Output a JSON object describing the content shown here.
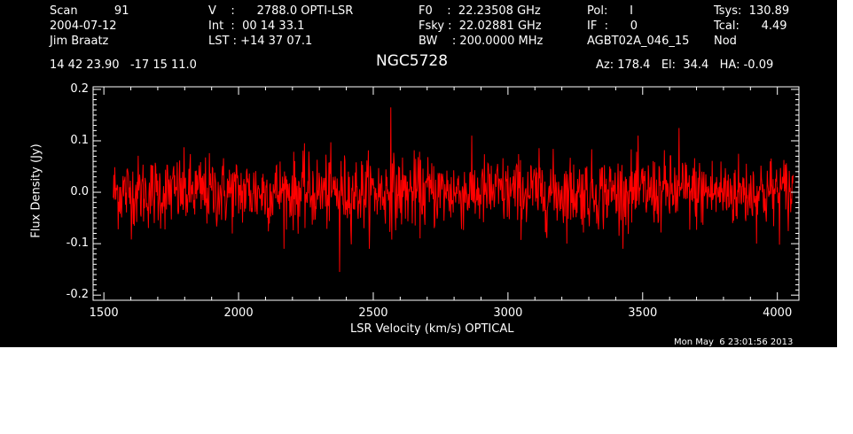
{
  "header": {
    "col1": [
      "Scan          91",
      "2004-07-12",
      "Jim Braatz"
    ],
    "col2": [
      "V    :      2788.0 OPTI-LSR",
      "Int  :  00 14 33.1",
      "LST : +14 37 07.1"
    ],
    "col3": [
      "F0    :  22.23508 GHz",
      "Fsky :  22.02881 GHz",
      "BW    : 200.0000 MHz"
    ],
    "col4": [
      "Pol:      I",
      "IF  :      0",
      "AGBT02A_046_15"
    ],
    "col5": [
      "Tsys:  130.89",
      "Tcal:      4.49",
      "Nod"
    ],
    "coords": "14 42 23.90   -17 15 11.0",
    "azel": "Az: 178.4   El:  34.4   HA: -0.09",
    "timestamp": "Mon May  6 23:01:56 2013"
  },
  "chart_data": {
    "type": "line",
    "title": "NGC5728",
    "xlabel": "LSR Velocity (km/s) OPTICAL",
    "ylabel": "Flux Density (Jy)",
    "xlim": [
      1460,
      4080
    ],
    "ylim": [
      -0.21,
      0.205
    ],
    "x_ticks": [
      1500,
      2000,
      2500,
      3000,
      3500,
      4000
    ],
    "y_ticks": [
      -0.2,
      -0.1,
      0.0,
      0.1,
      0.2
    ],
    "y_tick_labels": [
      "-0.2",
      "-0.1",
      "0.0",
      "0.1",
      "0.2"
    ],
    "series_color": "#ff0000",
    "series": [
      {
        "x_range": [
          1535,
          4060
        ],
        "noise_rms_jy": 0.035,
        "notable_points": [
          {
            "x": 2565,
            "y": 0.165
          },
          {
            "x": 2375,
            "y": -0.155
          },
          {
            "x": 3635,
            "y": 0.125
          }
        ]
      }
    ]
  }
}
